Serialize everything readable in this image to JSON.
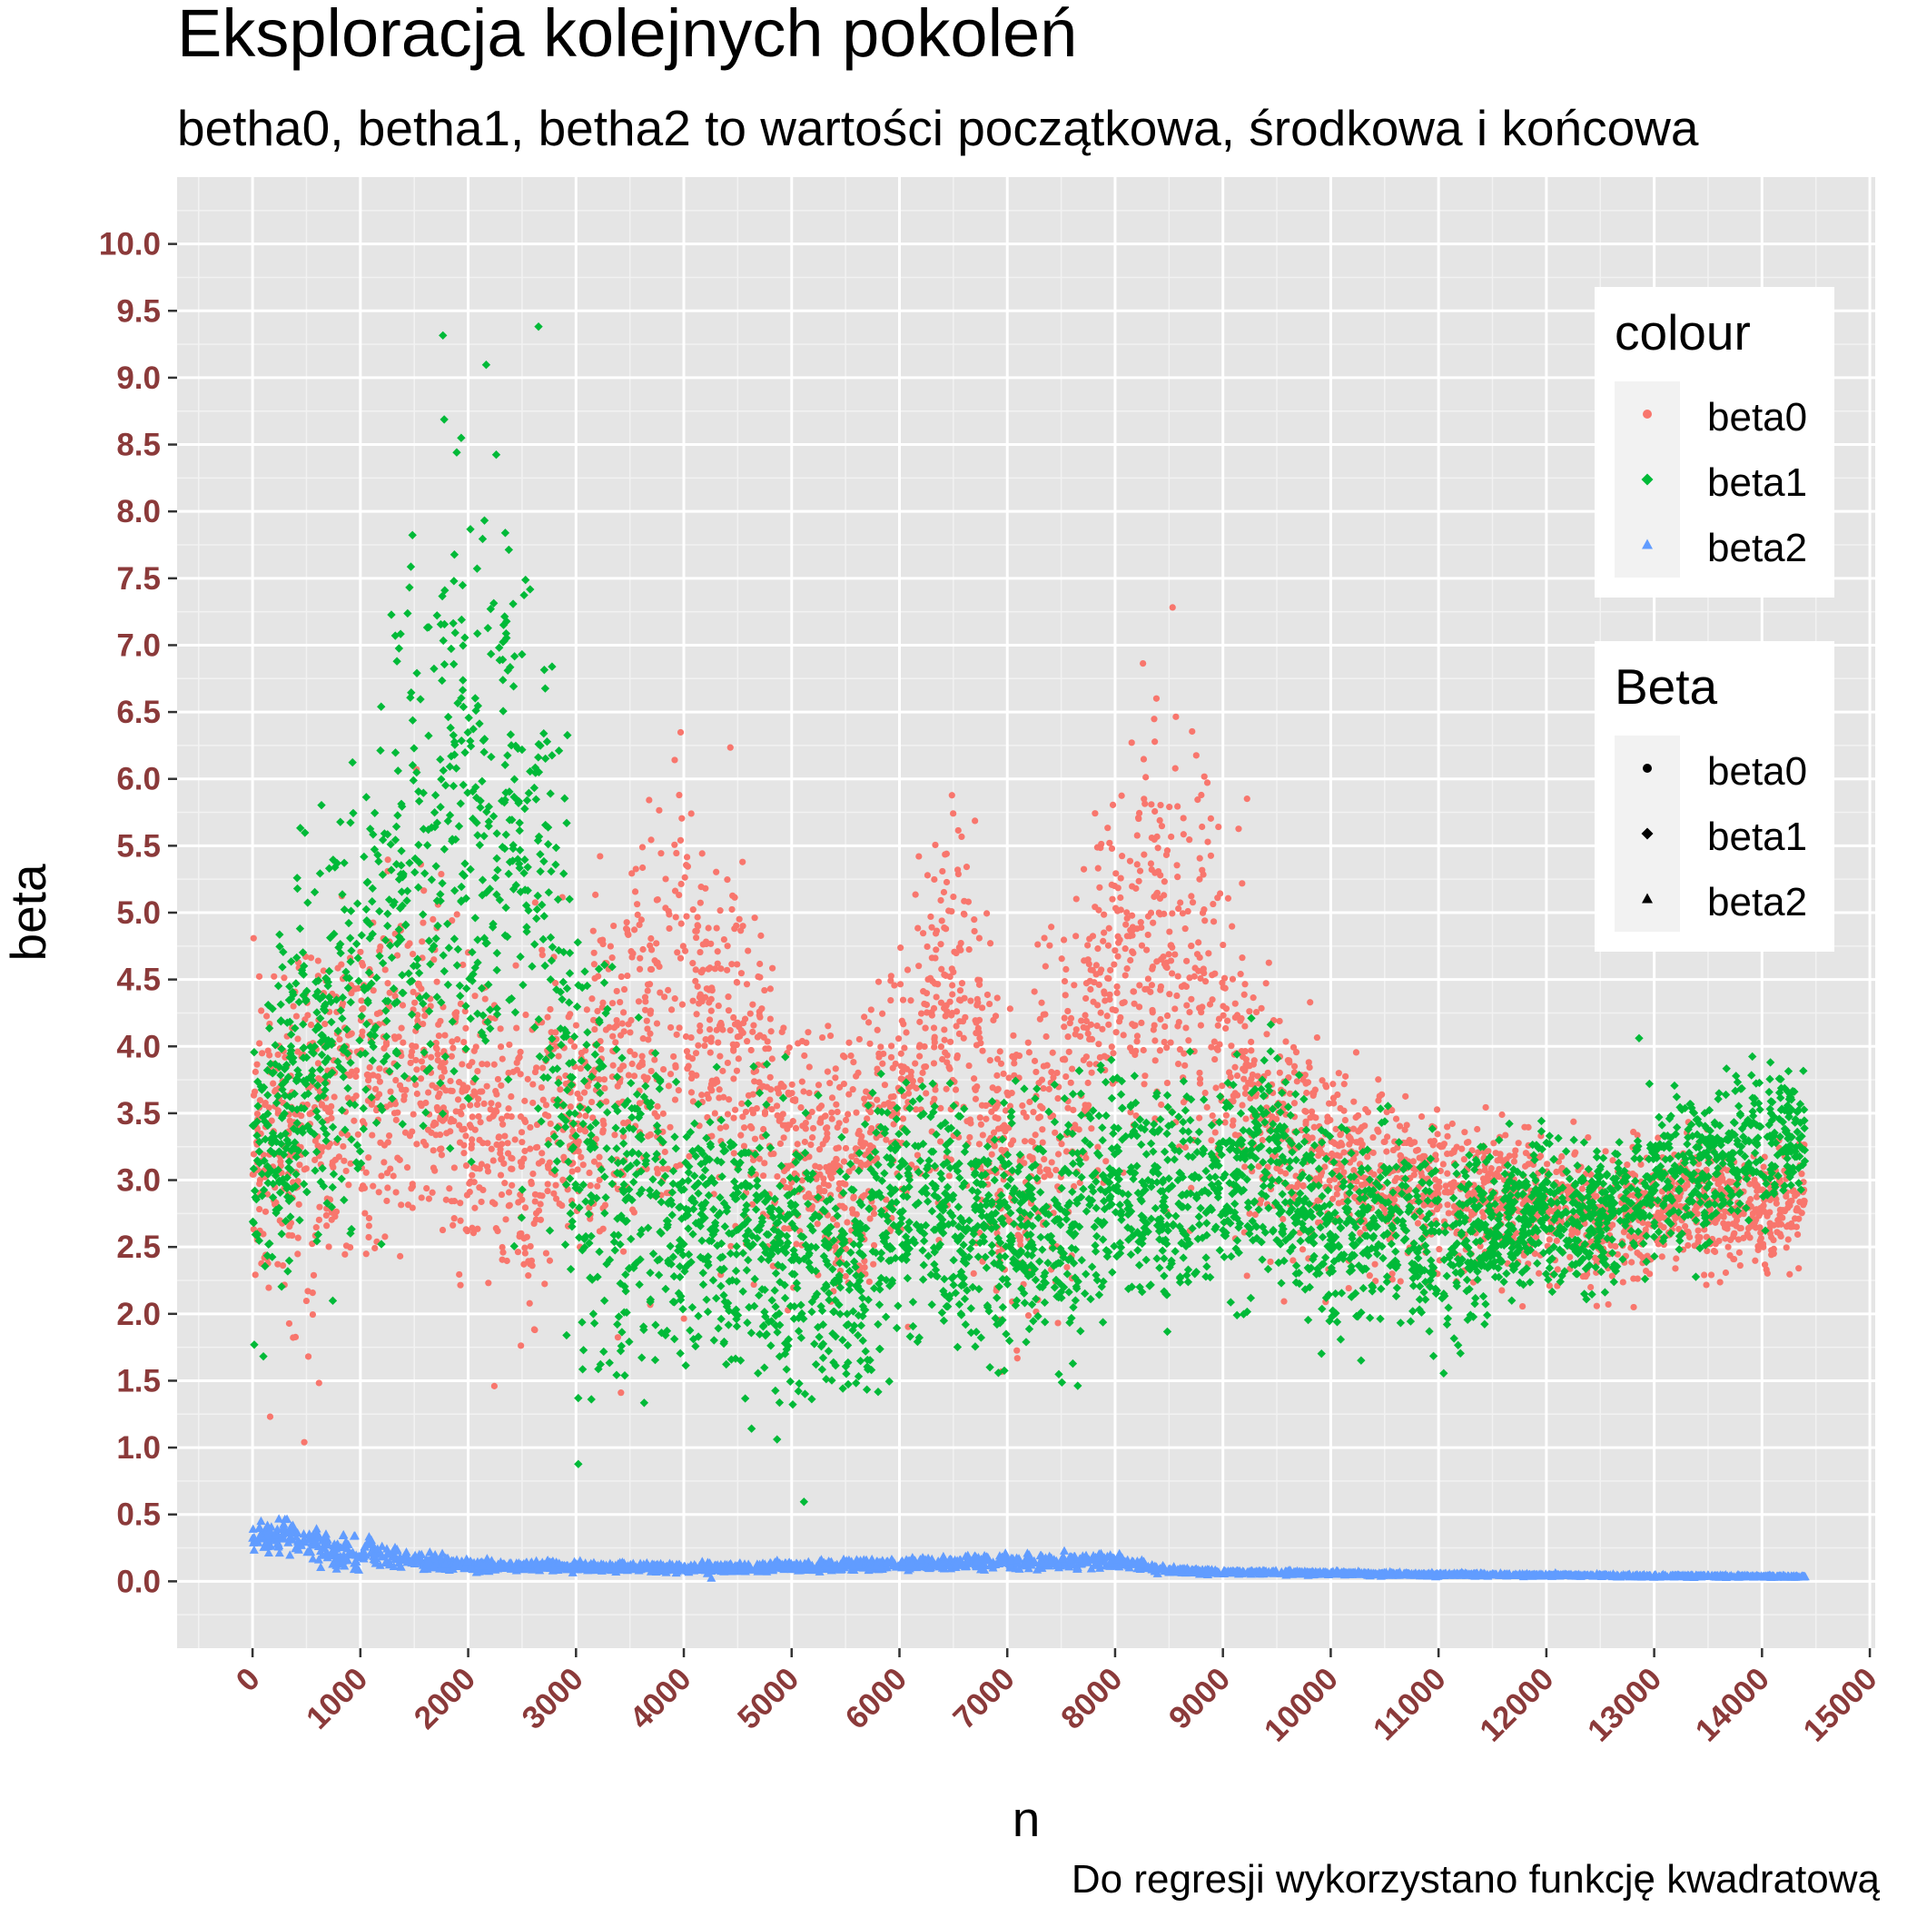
{
  "chart_data": {
    "type": "scatter",
    "title": "Eksploracja kolejnych pokoleń",
    "subtitle": "betha0, betha1, betha2 to wartości początkowa, środkowa i końcowa",
    "caption": "Do regresji wykorzystano funkcję kwadratową",
    "xlabel": "n",
    "ylabel": "beta",
    "xlim": [
      -700,
      15050
    ],
    "ylim": [
      -0.5,
      10.5
    ],
    "x_ticks": [
      0,
      1000,
      2000,
      3000,
      4000,
      5000,
      6000,
      7000,
      8000,
      9000,
      10000,
      11000,
      12000,
      13000,
      14000,
      15000
    ],
    "x_tick_labels": [
      "0",
      "1000",
      "2000",
      "3000",
      "4000",
      "5000",
      "6000",
      "7000",
      "8000",
      "9000",
      "10000",
      "11000",
      "12000",
      "13000",
      "14000",
      "15000"
    ],
    "y_ticks": [
      0,
      0.5,
      1,
      1.5,
      2,
      2.5,
      3,
      3.5,
      4,
      4.5,
      5,
      5.5,
      6,
      6.5,
      7,
      7.5,
      8,
      8.5,
      9,
      9.5,
      10
    ],
    "y_tick_labels": [
      "0.0",
      "0.5",
      "1.0",
      "1.5",
      "2.0",
      "2.5",
      "3.0",
      "3.5",
      "4.0",
      "4.5",
      "5.0",
      "5.5",
      "6.0",
      "6.5",
      "7.0",
      "7.5",
      "8.0",
      "8.5",
      "9.0",
      "9.5",
      "10.0"
    ],
    "x_max_observed": 14400,
    "grid": true,
    "background": "#e5e5e5",
    "legend_placement": "right",
    "legends": [
      {
        "title": "colour",
        "entries": [
          {
            "label": "beta0",
            "color": "#f8766d",
            "shape": "circle"
          },
          {
            "label": "beta1",
            "color": "#00ba38",
            "shape": "diamond"
          },
          {
            "label": "beta2",
            "color": "#619cff",
            "shape": "triangle"
          }
        ]
      },
      {
        "title": "Beta",
        "entries": [
          {
            "label": "beta0",
            "color": "#000000",
            "shape": "circle"
          },
          {
            "label": "beta1",
            "color": "#000000",
            "shape": "diamond"
          },
          {
            "label": "beta2",
            "color": "#000000",
            "shape": "triangle"
          }
        ]
      }
    ],
    "series": [
      {
        "name": "beta0",
        "color": "#f8766d",
        "shape": "circle",
        "trend": [
          [
            0,
            3.3
          ],
          [
            500,
            3.4
          ],
          [
            1000,
            3.7
          ],
          [
            1500,
            3.9
          ],
          [
            2000,
            3.5
          ],
          [
            2500,
            3.2
          ],
          [
            3000,
            3.6
          ],
          [
            3500,
            3.8
          ],
          [
            4000,
            4.3
          ],
          [
            4500,
            3.9
          ],
          [
            5000,
            3.2
          ],
          [
            5500,
            3.0
          ],
          [
            6000,
            3.5
          ],
          [
            6500,
            4.5
          ],
          [
            7000,
            3.0
          ],
          [
            7500,
            3.5
          ],
          [
            8000,
            4.6
          ],
          [
            8500,
            4.8
          ],
          [
            9000,
            4.2
          ],
          [
            9500,
            3.4
          ],
          [
            10000,
            3.2
          ],
          [
            10500,
            3.0
          ],
          [
            11000,
            2.9
          ],
          [
            11500,
            2.9
          ],
          [
            12000,
            2.8
          ],
          [
            12500,
            2.7
          ],
          [
            13000,
            2.8
          ],
          [
            13500,
            2.8
          ],
          [
            14000,
            2.8
          ],
          [
            14400,
            2.8
          ]
        ],
        "spread": [
          [
            0,
            1.0
          ],
          [
            500,
            1.3
          ],
          [
            1000,
            1.2
          ],
          [
            1500,
            1.3
          ],
          [
            2000,
            1.2
          ],
          [
            2500,
            1.0
          ],
          [
            3000,
            1.1
          ],
          [
            3500,
            1.3
          ],
          [
            4000,
            1.6
          ],
          [
            4500,
            1.2
          ],
          [
            5000,
            0.9
          ],
          [
            5500,
            0.8
          ],
          [
            6000,
            1.0
          ],
          [
            6500,
            1.4
          ],
          [
            7000,
            1.0
          ],
          [
            7500,
            1.1
          ],
          [
            8000,
            1.2
          ],
          [
            8500,
            1.3
          ],
          [
            9000,
            1.1
          ],
          [
            9500,
            0.8
          ],
          [
            10000,
            0.6
          ],
          [
            10500,
            0.6
          ],
          [
            11000,
            0.5
          ],
          [
            11500,
            0.5
          ],
          [
            12000,
            0.45
          ],
          [
            12500,
            0.45
          ],
          [
            13000,
            0.4
          ],
          [
            13500,
            0.4
          ],
          [
            14000,
            0.4
          ],
          [
            14400,
            0.4
          ]
        ]
      },
      {
        "name": "beta1",
        "color": "#00ba38",
        "shape": "diamond",
        "trend": [
          [
            0,
            3.0
          ],
          [
            500,
            3.8
          ],
          [
            1000,
            4.2
          ],
          [
            1500,
            5.5
          ],
          [
            2000,
            5.8
          ],
          [
            2500,
            5.5
          ],
          [
            2800,
            5.0
          ],
          [
            3000,
            3.2
          ],
          [
            3500,
            3.0
          ],
          [
            4000,
            2.6
          ],
          [
            4500,
            2.7
          ],
          [
            5000,
            2.3
          ],
          [
            5500,
            2.2
          ],
          [
            6000,
            2.8
          ],
          [
            6500,
            2.7
          ],
          [
            7000,
            2.6
          ],
          [
            7500,
            2.6
          ],
          [
            8000,
            3.0
          ],
          [
            8500,
            2.8
          ],
          [
            9000,
            3.0
          ],
          [
            9500,
            3.2
          ],
          [
            10000,
            2.5
          ],
          [
            10500,
            2.7
          ],
          [
            11000,
            2.5
          ],
          [
            11500,
            2.6
          ],
          [
            12000,
            2.8
          ],
          [
            12500,
            2.7
          ],
          [
            13000,
            3.0
          ],
          [
            13500,
            3.1
          ],
          [
            14000,
            3.3
          ],
          [
            14400,
            3.4
          ]
        ],
        "spread": [
          [
            0,
            1.0
          ],
          [
            500,
            1.2
          ],
          [
            1000,
            1.5
          ],
          [
            1500,
            1.8
          ],
          [
            2000,
            2.2
          ],
          [
            2500,
            2.2
          ],
          [
            2800,
            2.0
          ],
          [
            3000,
            1.5
          ],
          [
            3500,
            1.3
          ],
          [
            4000,
            0.8
          ],
          [
            4500,
            0.9
          ],
          [
            5000,
            0.9
          ],
          [
            5500,
            0.9
          ],
          [
            6000,
            0.8
          ],
          [
            6500,
            0.8
          ],
          [
            7000,
            0.8
          ],
          [
            7500,
            0.8
          ],
          [
            8000,
            0.9
          ],
          [
            8500,
            0.7
          ],
          [
            9000,
            0.7
          ],
          [
            9500,
            0.7
          ],
          [
            10000,
            0.6
          ],
          [
            10500,
            0.6
          ],
          [
            11000,
            0.6
          ],
          [
            11500,
            0.5
          ],
          [
            12000,
            0.5
          ],
          [
            12500,
            0.45
          ],
          [
            13000,
            0.5
          ],
          [
            13500,
            0.5
          ],
          [
            14000,
            0.45
          ],
          [
            14400,
            0.4
          ]
        ]
      },
      {
        "name": "beta2",
        "color": "#619cff",
        "shape": "triangle",
        "trend": [
          [
            0,
            0.32
          ],
          [
            300,
            0.35
          ],
          [
            600,
            0.25
          ],
          [
            1000,
            0.22
          ],
          [
            1500,
            0.15
          ],
          [
            2000,
            0.12
          ],
          [
            3000,
            0.11
          ],
          [
            4000,
            0.1
          ],
          [
            5000,
            0.11
          ],
          [
            6000,
            0.13
          ],
          [
            7000,
            0.15
          ],
          [
            8000,
            0.15
          ],
          [
            8500,
            0.08
          ],
          [
            9000,
            0.07
          ],
          [
            10000,
            0.06
          ],
          [
            11000,
            0.05
          ],
          [
            12000,
            0.045
          ],
          [
            13000,
            0.04
          ],
          [
            14000,
            0.035
          ],
          [
            14400,
            0.035
          ]
        ],
        "spread": [
          [
            0,
            0.08
          ],
          [
            300,
            0.12
          ],
          [
            600,
            0.1
          ],
          [
            1000,
            0.12
          ],
          [
            1500,
            0.05
          ],
          [
            2000,
            0.04
          ],
          [
            3000,
            0.03
          ],
          [
            4000,
            0.03
          ],
          [
            5000,
            0.03
          ],
          [
            6000,
            0.04
          ],
          [
            7000,
            0.05
          ],
          [
            8000,
            0.05
          ],
          [
            8500,
            0.02
          ],
          [
            9000,
            0.015
          ],
          [
            10000,
            0.012
          ],
          [
            11000,
            0.01
          ],
          [
            12000,
            0.008
          ],
          [
            13000,
            0.008
          ],
          [
            14000,
            0.006
          ],
          [
            14400,
            0.006
          ]
        ]
      }
    ]
  }
}
